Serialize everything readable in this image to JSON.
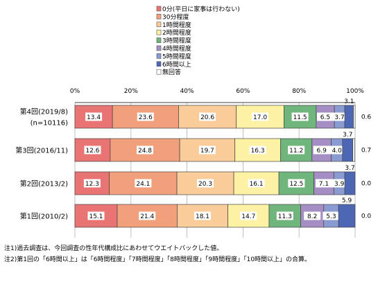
{
  "chart_data": {
    "type": "bar",
    "stacked": true,
    "orientation": "horizontal",
    "xlim": [
      0,
      100
    ],
    "x_ticks": [
      "0%",
      "20%",
      "40%",
      "60%",
      "80%",
      "100%"
    ],
    "legend_placement": "top-center",
    "grid": true,
    "categories": [
      [
        "第4回(2019/8)",
        "(n=10116)"
      ],
      [
        "第3回(2016/11)"
      ],
      [
        "第2回(2013/2)"
      ],
      [
        "第1回(2010/2)"
      ]
    ],
    "series": [
      {
        "name": "0分(平日に家事は行わない)",
        "color": "#e87474",
        "values": [
          13.4,
          12.6,
          12.3,
          15.1
        ]
      },
      {
        "name": "30分程度",
        "color": "#f2a07c",
        "values": [
          23.6,
          24.8,
          24.1,
          21.4
        ]
      },
      {
        "name": "1時間程度",
        "color": "#f9cc9a",
        "values": [
          20.6,
          19.7,
          20.3,
          18.1
        ]
      },
      {
        "name": "2時間程度",
        "color": "#fdf1a3",
        "values": [
          17.0,
          16.3,
          16.1,
          14.7
        ]
      },
      {
        "name": "3時間程度",
        "color": "#70b67c",
        "values": [
          11.5,
          11.2,
          12.5,
          11.3
        ]
      },
      {
        "name": "4時間程度",
        "color": "#a48ec4",
        "values": [
          6.5,
          6.9,
          7.1,
          8.2
        ]
      },
      {
        "name": "5時間程度",
        "color": "#8a9bd2",
        "values": [
          3.7,
          4.0,
          3.9,
          5.3
        ]
      },
      {
        "name": "6時間以上",
        "color": "#4e67b4",
        "values": [
          3.1,
          3.7,
          3.7,
          5.9
        ]
      },
      {
        "name": "無回答",
        "color": "#ffffff",
        "values": [
          0.6,
          0.7,
          0.0,
          0.0
        ]
      }
    ],
    "data_labels": [
      [
        "13.4",
        "23.6",
        "20.6",
        "17.0",
        "11.5",
        "6.5",
        "3.7",
        "3.1",
        "0.6"
      ],
      [
        "12.6",
        "24.8",
        "19.7",
        "16.3",
        "11.2",
        "6.9",
        "4.0",
        "3.7",
        "0.7"
      ],
      [
        "12.3",
        "24.1",
        "20.3",
        "16.1",
        "12.5",
        "7.1",
        "3.9",
        "3.7",
        "0.0"
      ],
      [
        "15.1",
        "21.4",
        "18.1",
        "14.7",
        "11.3",
        "8.2",
        "5.3",
        "5.9",
        "0.0"
      ]
    ]
  },
  "notes": [
    "注1)過去調査は、今回調査の性年代構成比にあわせてウエイトバックした値。",
    "注2)第1回の「6時間以上」は「6時間程度」「7時間程度」「8時間程度」「9時間程度」「10時間以上」の合算。"
  ]
}
